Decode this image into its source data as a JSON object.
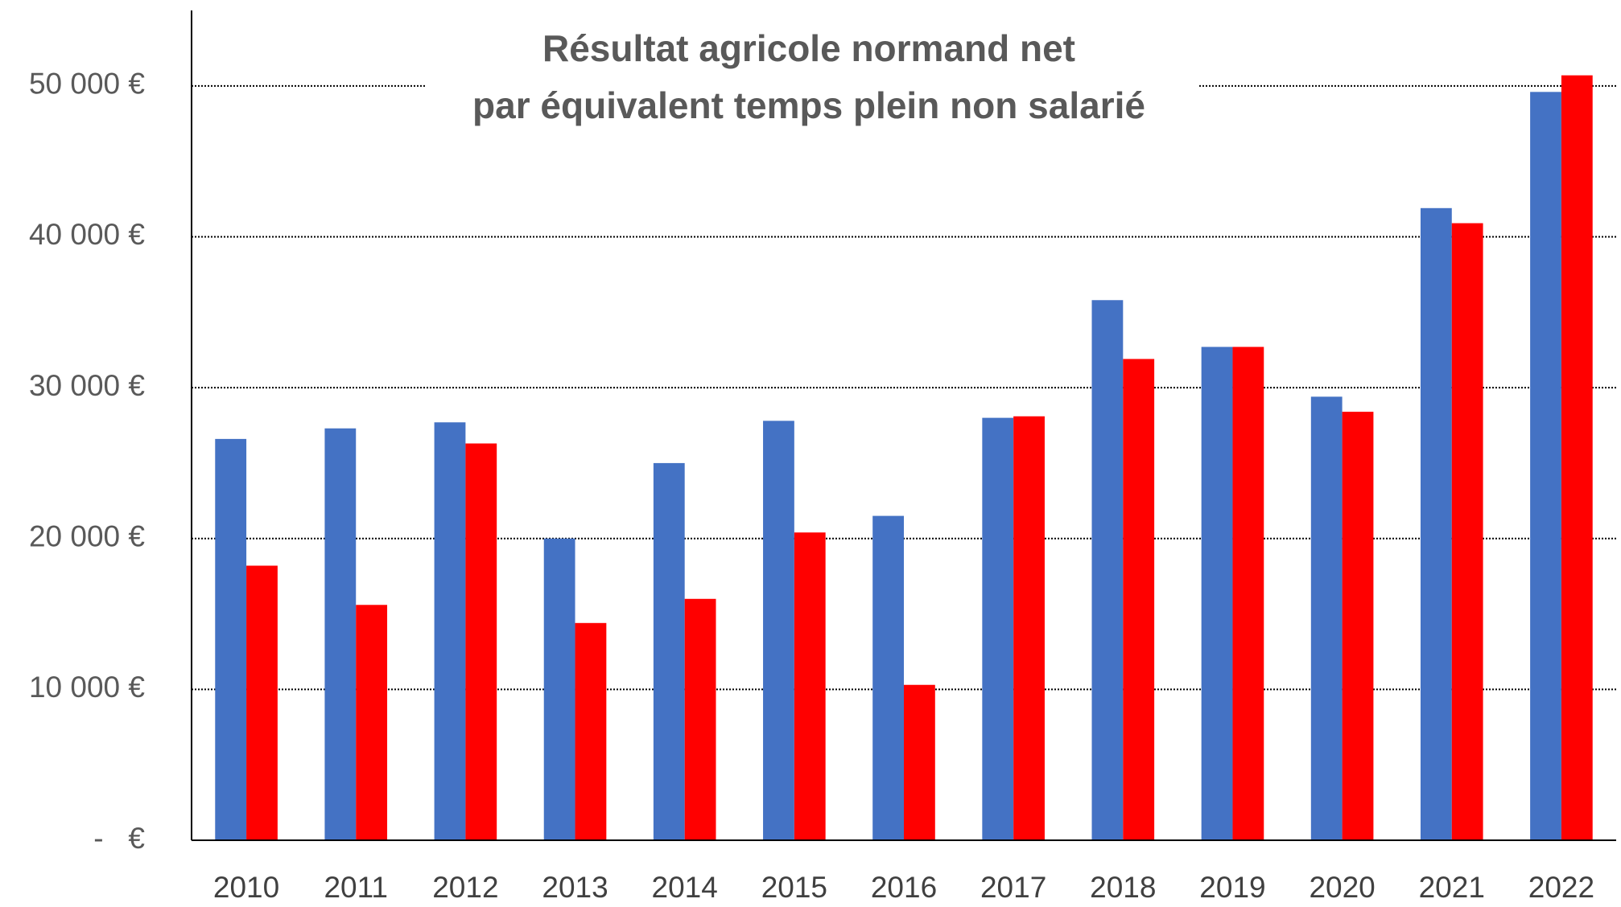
{
  "chart_data": {
    "type": "bar",
    "title": [
      "Résultat agricole normand net",
      "par équivalent temps plein non salarié"
    ],
    "categories": [
      "2010",
      "2011",
      "2012",
      "2013",
      "2014",
      "2015",
      "2016",
      "2017",
      "2018",
      "2019",
      "2020",
      "2021",
      "2022"
    ],
    "series": [
      {
        "color": "#4472c4",
        "values": [
          26600,
          27300,
          27700,
          20000,
          25000,
          27800,
          21500,
          28000,
          35800,
          32700,
          29400,
          41900,
          49600
        ]
      },
      {
        "color": "#ff0000",
        "values": [
          18200,
          15600,
          26300,
          14400,
          16000,
          20400,
          10300,
          28100,
          31900,
          32700,
          28400,
          40900,
          50700
        ]
      }
    ],
    "ylim": [
      0,
      55000
    ],
    "yticks": [
      {
        "value": 0,
        "label": "-   €"
      },
      {
        "value": 10000,
        "label": "10 000 €"
      },
      {
        "value": 20000,
        "label": "20 000 €"
      },
      {
        "value": 30000,
        "label": "30 000 €"
      },
      {
        "value": 40000,
        "label": "40 000 €"
      },
      {
        "value": 50000,
        "label": "50 000 €"
      }
    ],
    "grid": true
  }
}
